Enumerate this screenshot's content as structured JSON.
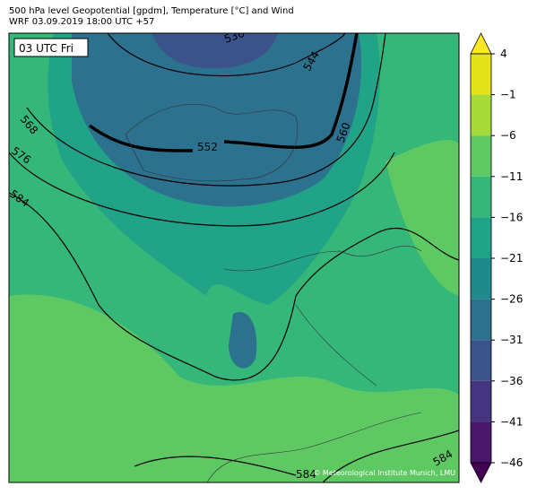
{
  "header": {
    "title": "500 hPa level Geopotential [gpdm], Temperature [°C] and Wind",
    "subtitle": "WRF 03.09.2019 18:00 UTC +57"
  },
  "map": {
    "time_label": "03 UTC Fri",
    "credit": "© Meteorological Institute Munich, LMU",
    "contour_labels": [
      "536",
      "544",
      "552",
      "560",
      "568",
      "576",
      "584",
      "584",
      "584"
    ]
  },
  "colorbar": {
    "ticks": [
      4,
      {
        "value": -1,
        "label": "−1"
      },
      {
        "value": -6,
        "label": "−6"
      },
      {
        "value": -11,
        "label": "−11"
      },
      {
        "value": -16,
        "label": "−16"
      },
      {
        "value": -21,
        "label": "−21"
      },
      {
        "value": -26,
        "label": "−26"
      },
      {
        "value": -31,
        "label": "−31"
      },
      {
        "value": -36,
        "label": "−36"
      },
      {
        "value": -41,
        "label": "−41"
      },
      {
        "value": -46,
        "label": "−46"
      }
    ],
    "colors": [
      "#e2e418",
      "#a5db36",
      "#5ec962",
      "#35b779",
      "#20a386",
      "#1f8a8c",
      "#2c728e",
      "#3b528b",
      "#453581",
      "#481769"
    ],
    "over_color": "#fde725",
    "under_color": "#440154"
  }
}
